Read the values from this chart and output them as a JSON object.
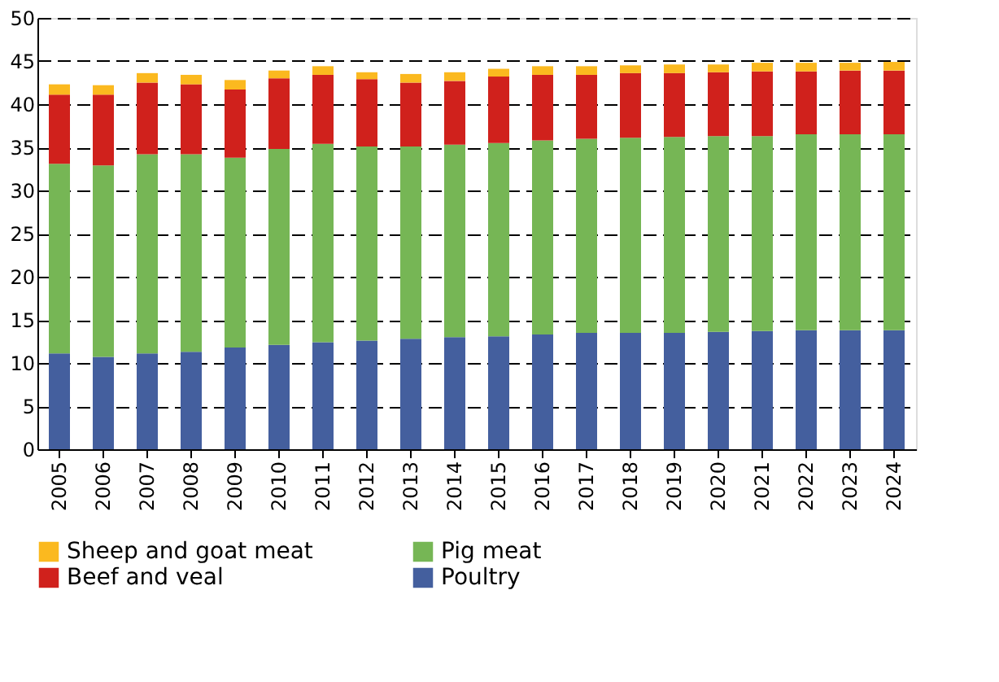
{
  "chart_data": {
    "type": "bar",
    "stacked": true,
    "categories": [
      "2005",
      "2006",
      "2007",
      "2008",
      "2009",
      "2010",
      "2011",
      "2012",
      "2013",
      "2014",
      "2015",
      "2016",
      "2017",
      "2018",
      "2019",
      "2020",
      "2021",
      "2022",
      "2023",
      "2024"
    ],
    "series": [
      {
        "name": "Poultry",
        "color": "#445f9e",
        "values": [
          11.1,
          10.7,
          11.1,
          11.3,
          11.8,
          12.1,
          12.4,
          12.6,
          12.8,
          13.0,
          13.1,
          13.3,
          13.5,
          13.5,
          13.5,
          13.6,
          13.7,
          13.8,
          13.8,
          13.8
        ]
      },
      {
        "name": "Pig meat",
        "color": "#76b655",
        "values": [
          22.0,
          22.2,
          23.1,
          22.9,
          22.0,
          22.7,
          23.0,
          22.5,
          22.3,
          22.3,
          22.4,
          22.5,
          22.5,
          22.6,
          22.7,
          22.7,
          22.6,
          22.7,
          22.7,
          22.7
        ]
      },
      {
        "name": "Beef and veal",
        "color": "#d0211c",
        "values": [
          8.0,
          8.2,
          8.3,
          8.1,
          7.9,
          8.2,
          8.0,
          7.8,
          7.4,
          7.4,
          7.7,
          7.6,
          7.4,
          7.5,
          7.4,
          7.4,
          7.5,
          7.3,
          7.4,
          7.4
        ]
      },
      {
        "name": "Sheep and goat meat",
        "color": "#fbb91f",
        "values": [
          1.2,
          1.1,
          1.1,
          1.1,
          1.1,
          0.9,
          1.0,
          0.8,
          1.0,
          1.0,
          0.9,
          1.0,
          1.0,
          0.9,
          1.0,
          0.9,
          1.0,
          1.0,
          0.9,
          1.0
        ]
      }
    ],
    "ylim": [
      0,
      50
    ],
    "yticks": [
      0,
      5,
      10,
      15,
      20,
      25,
      30,
      35,
      40,
      45,
      50
    ],
    "grid": "y",
    "line_style": "dashed",
    "legend": "bottom"
  }
}
